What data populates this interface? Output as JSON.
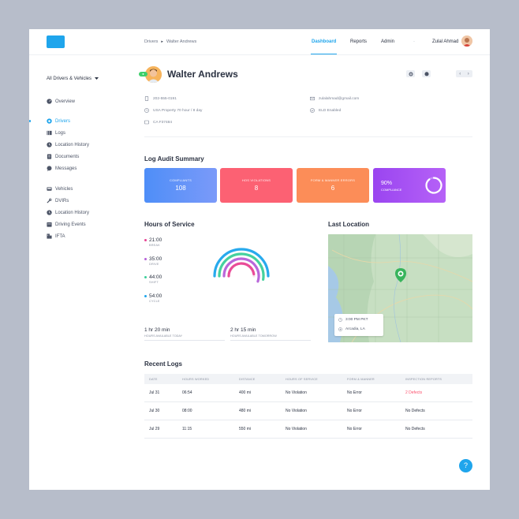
{
  "header": {
    "breadcrumb": [
      "Drivers",
      "Walter Andrews"
    ],
    "breadcrumb_separator": "▸",
    "nav": [
      "Dashboard",
      "Reports",
      "Admin"
    ],
    "nav_more": "·",
    "user_name": "Zulal Ahmad"
  },
  "sidebar": {
    "fleet_select": "All Drivers & Vehicles",
    "items": [
      {
        "label": "Overview",
        "icon": "dashboard-icon"
      },
      {
        "label": "Drivers",
        "icon": "drivers-icon",
        "active": true
      },
      {
        "label": "Logs",
        "icon": "logs-icon"
      },
      {
        "label": "Location History",
        "icon": "location-history-icon"
      },
      {
        "label": "Documents",
        "icon": "documents-icon"
      },
      {
        "label": "Messages",
        "icon": "messages-icon"
      },
      {
        "label": "Vehicles",
        "icon": "vehicle-icon"
      },
      {
        "label": "DVIRs",
        "icon": "wrench-icon"
      },
      {
        "label": "Location History",
        "icon": "location-history-icon"
      },
      {
        "label": "Driving Events",
        "icon": "events-icon"
      },
      {
        "label": "IFTA",
        "icon": "ifta-icon"
      }
    ]
  },
  "profile": {
    "status": "●",
    "name": "Walter Andrews",
    "phone": "202-555-0191",
    "cycle": "USA Property 70 hour / 8 day",
    "license": "CA F37484",
    "email": "zulalahmad@gmail.com",
    "eld": "ELD Enabled"
  },
  "log_audit": {
    "title": "Log Audit Summary",
    "cards": [
      {
        "label": "COMPLIANTS",
        "value": "108"
      },
      {
        "label": "HOS VIOLATIONS",
        "value": "8"
      },
      {
        "label": "FORM & MANNER ERRORS",
        "value": "6"
      }
    ],
    "compliance_value": "90%",
    "compliance_label": "COMPLIANCE",
    "compliance_fraction": 0.9
  },
  "hours_of_service": {
    "title": "Hours of Service",
    "items": [
      {
        "time": "21:00",
        "label": "BREAK",
        "color": "#e84393",
        "fraction": 0.45
      },
      {
        "time": "35:00",
        "label": "DRIVE",
        "color": "#b560d8",
        "fraction": 0.6
      },
      {
        "time": "44:00",
        "label": "SHIFT",
        "color": "#3ccf9a",
        "fraction": 0.55
      },
      {
        "time": "54:00",
        "label": "CYCLE",
        "color": "#1fa5ec",
        "fraction": 0.5
      }
    ],
    "available_today": "1 hr 20 min",
    "available_today_label": "HOURS AVAILABLE TODAY",
    "available_tomorrow": "2 hr 15 min",
    "available_tomorrow_label": "HOURS AVAILABLE TOMORROW"
  },
  "last_location": {
    "title": "Last Location",
    "time": "3:00 PM PKT",
    "place": "Arcadia, LA"
  },
  "recent_logs": {
    "title": "Recent Logs",
    "columns": [
      "DATE",
      "HOURS WORKED",
      "DISTANCE",
      "HOURS OF SERVICE",
      "FORM & MANNER",
      "INSPECTION REPORTS"
    ],
    "rows": [
      [
        "Jul 31",
        "06:54",
        "400 mi",
        "No Violation",
        "No Error",
        "2 Defects"
      ],
      [
        "Jul 30",
        "08:00",
        "480 mi",
        "No Violation",
        "No Error",
        "No Defects"
      ],
      [
        "Jul 29",
        "11:15",
        "550 mi",
        "No Violation",
        "No Error",
        "No Defects"
      ]
    ]
  },
  "help": "?",
  "colors": {
    "accent": "#1fa5ec",
    "danger": "#fc4f6b",
    "success": "#3ecf6b"
  }
}
